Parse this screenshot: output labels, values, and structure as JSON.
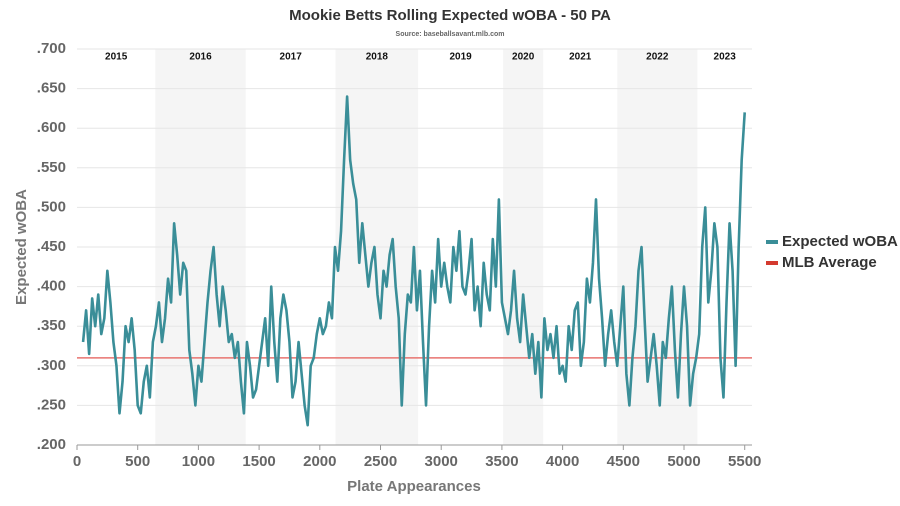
{
  "chart_data": {
    "type": "line",
    "title": "Mookie Betts Rolling Expected wOBA - 50 PA",
    "subtitle": "Source: baseballsavant.mlb.com",
    "xlabel": "Plate Appearances",
    "ylabel": "Expected wOBA",
    "xlim": [
      0,
      5560
    ],
    "ylim": [
      0.2,
      0.7
    ],
    "xticks": [
      0,
      500,
      1000,
      1500,
      2000,
      2500,
      3000,
      3500,
      4000,
      4500,
      5000,
      5500
    ],
    "yticks": [
      {
        "value": 0.2,
        "label": ".200"
      },
      {
        "value": 0.25,
        "label": ".250"
      },
      {
        "value": 0.3,
        "label": ".300"
      },
      {
        "value": 0.35,
        "label": ".350"
      },
      {
        "value": 0.4,
        "label": ".400"
      },
      {
        "value": 0.45,
        "label": ".450"
      },
      {
        "value": 0.5,
        "label": ".500"
      },
      {
        "value": 0.55,
        "label": ".550"
      },
      {
        "value": 0.6,
        "label": ".600"
      },
      {
        "value": 0.65,
        "label": ".650"
      },
      {
        "value": 0.7,
        "label": ".700"
      }
    ],
    "grid": true,
    "legend": "right",
    "seasons": [
      {
        "label": "2015",
        "start": 0,
        "end": 645,
        "shaded": false
      },
      {
        "label": "2016",
        "start": 645,
        "end": 1390,
        "shaded": true
      },
      {
        "label": "2017",
        "start": 1390,
        "end": 2130,
        "shaded": false
      },
      {
        "label": "2018",
        "start": 2130,
        "end": 2810,
        "shaded": true
      },
      {
        "label": "2019",
        "start": 2810,
        "end": 3510,
        "shaded": false
      },
      {
        "label": "2020",
        "start": 3510,
        "end": 3840,
        "shaded": true
      },
      {
        "label": "2021",
        "start": 3840,
        "end": 4450,
        "shaded": false
      },
      {
        "label": "2022",
        "start": 4450,
        "end": 5110,
        "shaded": true
      },
      {
        "label": "2023",
        "start": 5110,
        "end": 5560,
        "shaded": false
      }
    ],
    "reference_line": {
      "name": "MLB Average",
      "value": 0.31,
      "color": "#e8736f"
    },
    "x": [
      50,
      75,
      100,
      125,
      150,
      175,
      200,
      225,
      250,
      275,
      300,
      325,
      350,
      375,
      400,
      425,
      450,
      475,
      500,
      525,
      550,
      575,
      600,
      625,
      650,
      675,
      700,
      725,
      750,
      775,
      800,
      825,
      850,
      875,
      900,
      925,
      950,
      975,
      1000,
      1025,
      1050,
      1075,
      1100,
      1125,
      1150,
      1175,
      1200,
      1225,
      1250,
      1275,
      1300,
      1325,
      1350,
      1375,
      1400,
      1425,
      1450,
      1475,
      1500,
      1525,
      1550,
      1575,
      1600,
      1625,
      1650,
      1675,
      1700,
      1725,
      1750,
      1775,
      1800,
      1825,
      1850,
      1875,
      1900,
      1925,
      1950,
      1975,
      2000,
      2025,
      2050,
      2075,
      2100,
      2125,
      2150,
      2175,
      2200,
      2225,
      2250,
      2275,
      2300,
      2325,
      2350,
      2375,
      2400,
      2425,
      2450,
      2475,
      2500,
      2525,
      2550,
      2575,
      2600,
      2625,
      2650,
      2675,
      2700,
      2725,
      2750,
      2775,
      2800,
      2825,
      2850,
      2875,
      2900,
      2925,
      2950,
      2975,
      3000,
      3025,
      3050,
      3075,
      3100,
      3125,
      3150,
      3175,
      3200,
      3225,
      3250,
      3275,
      3300,
      3325,
      3350,
      3375,
      3400,
      3425,
      3450,
      3475,
      3500,
      3525,
      3550,
      3575,
      3600,
      3625,
      3650,
      3675,
      3700,
      3725,
      3750,
      3775,
      3800,
      3825,
      3850,
      3875,
      3900,
      3925,
      3950,
      3975,
      4000,
      4025,
      4050,
      4075,
      4100,
      4125,
      4150,
      4175,
      4200,
      4225,
      4250,
      4275,
      4300,
      4325,
      4350,
      4375,
      4400,
      4425,
      4450,
      4475,
      4500,
      4525,
      4550,
      4575,
      4600,
      4625,
      4650,
      4675,
      4700,
      4725,
      4750,
      4775,
      4800,
      4825,
      4850,
      4875,
      4900,
      4925,
      4950,
      4975,
      5000,
      5025,
      5050,
      5075,
      5100,
      5125,
      5150,
      5175,
      5200,
      5225,
      5250,
      5275,
      5300,
      5325,
      5350,
      5375,
      5400,
      5425,
      5450,
      5475,
      5500
    ],
    "series": [
      {
        "name": "Expected wOBA",
        "color": "#3a8e98",
        "values": [
          0.33,
          0.37,
          0.315,
          0.385,
          0.35,
          0.39,
          0.34,
          0.36,
          0.42,
          0.38,
          0.33,
          0.3,
          0.24,
          0.28,
          0.35,
          0.33,
          0.36,
          0.32,
          0.25,
          0.24,
          0.28,
          0.3,
          0.26,
          0.33,
          0.35,
          0.38,
          0.33,
          0.36,
          0.41,
          0.38,
          0.48,
          0.44,
          0.39,
          0.43,
          0.42,
          0.32,
          0.29,
          0.25,
          0.3,
          0.28,
          0.33,
          0.38,
          0.42,
          0.45,
          0.39,
          0.35,
          0.4,
          0.37,
          0.33,
          0.34,
          0.31,
          0.33,
          0.28,
          0.24,
          0.33,
          0.3,
          0.26,
          0.27,
          0.3,
          0.33,
          0.36,
          0.3,
          0.4,
          0.33,
          0.28,
          0.36,
          0.39,
          0.37,
          0.33,
          0.26,
          0.28,
          0.33,
          0.29,
          0.25,
          0.225,
          0.3,
          0.31,
          0.34,
          0.36,
          0.34,
          0.35,
          0.38,
          0.36,
          0.45,
          0.42,
          0.47,
          0.56,
          0.64,
          0.56,
          0.53,
          0.51,
          0.43,
          0.48,
          0.44,
          0.4,
          0.43,
          0.45,
          0.39,
          0.36,
          0.42,
          0.4,
          0.44,
          0.46,
          0.4,
          0.36,
          0.25,
          0.34,
          0.39,
          0.38,
          0.45,
          0.37,
          0.42,
          0.33,
          0.25,
          0.35,
          0.42,
          0.38,
          0.46,
          0.4,
          0.43,
          0.4,
          0.38,
          0.45,
          0.42,
          0.47,
          0.4,
          0.39,
          0.42,
          0.46,
          0.37,
          0.4,
          0.35,
          0.43,
          0.39,
          0.37,
          0.46,
          0.4,
          0.51,
          0.38,
          0.36,
          0.34,
          0.37,
          0.42,
          0.36,
          0.33,
          0.39,
          0.35,
          0.31,
          0.34,
          0.29,
          0.33,
          0.26,
          0.36,
          0.32,
          0.34,
          0.31,
          0.35,
          0.29,
          0.3,
          0.28,
          0.35,
          0.32,
          0.37,
          0.38,
          0.3,
          0.33,
          0.41,
          0.38,
          0.43,
          0.51,
          0.41,
          0.36,
          0.3,
          0.34,
          0.37,
          0.33,
          0.3,
          0.35,
          0.4,
          0.29,
          0.25,
          0.31,
          0.35,
          0.42,
          0.45,
          0.36,
          0.28,
          0.31,
          0.34,
          0.3,
          0.25,
          0.33,
          0.31,
          0.36,
          0.4,
          0.32,
          0.26,
          0.34,
          0.4,
          0.35,
          0.25,
          0.29,
          0.31,
          0.34,
          0.45,
          0.5,
          0.38,
          0.42,
          0.48,
          0.45,
          0.31,
          0.26,
          0.38,
          0.48,
          0.42,
          0.3,
          0.45,
          0.56,
          0.62
        ]
      }
    ]
  }
}
